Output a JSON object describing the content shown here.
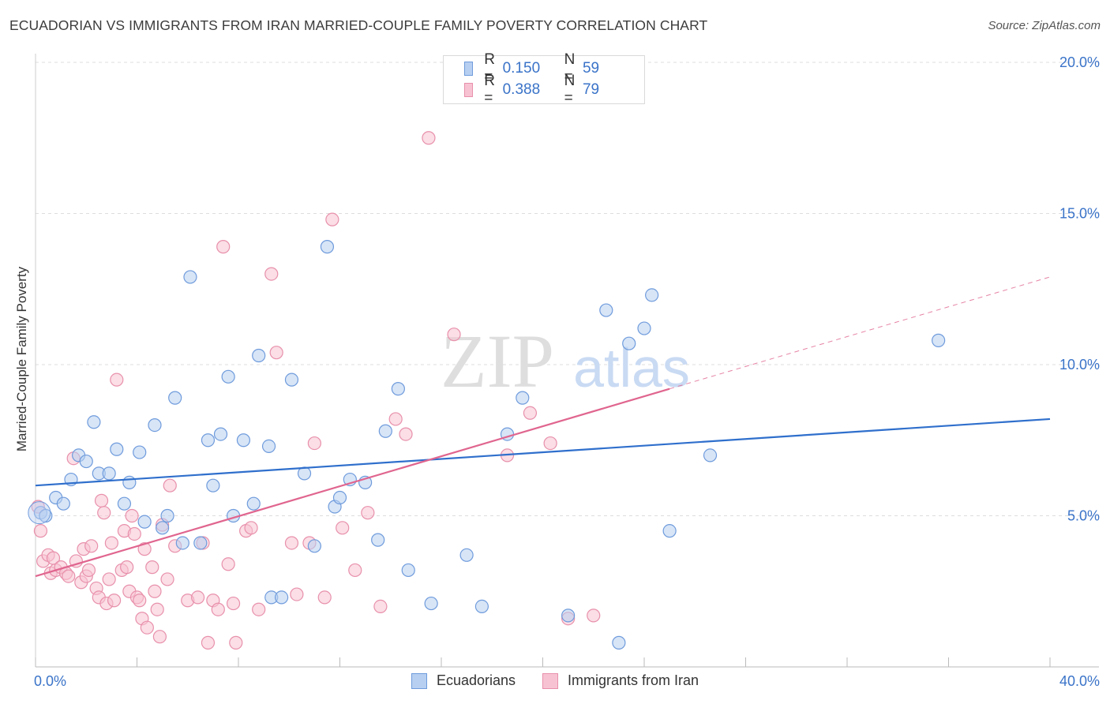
{
  "title": "ECUADORIAN VS IMMIGRANTS FROM IRAN MARRIED-COUPLE FAMILY POVERTY CORRELATION CHART",
  "source": "Source: ZipAtlas.com",
  "watermark": {
    "zip": "ZIP",
    "atlas": "atlas"
  },
  "legend_top": [
    {
      "r_label": "R =",
      "r_value": "0.150",
      "n_label": "N =",
      "n_value": "59"
    },
    {
      "r_label": "R =",
      "r_value": "0.388",
      "n_label": "N =",
      "n_value": "79"
    }
  ],
  "legend_bottom": [
    "Ecuadorians",
    "Immigrants from Iran"
  ],
  "colors": {
    "blue_fill": "#b7cff1",
    "blue_stroke": "#6f9bdc",
    "blue_line": "#2f6fcc",
    "pink_fill": "#f7c3d2",
    "pink_stroke": "#e890ab",
    "pink_line": "#e0658f",
    "grid": "#dddddd",
    "tick_label": "#3a73c8"
  },
  "chart_data": {
    "type": "scatter",
    "title": "ECUADORIAN VS IMMIGRANTS FROM IRAN MARRIED-COUPLE FAMILY POVERTY CORRELATION CHART",
    "xlabel": "",
    "ylabel": "Married-Couple Family Poverty",
    "xlim": [
      0,
      40
    ],
    "ylim": [
      0,
      20
    ],
    "x_tick_labels": [
      "0.0%",
      "40.0%"
    ],
    "y_ticks": [
      5,
      10,
      15,
      20
    ],
    "y_tick_labels": [
      "5.0%",
      "10.0%",
      "15.0%",
      "20.0%"
    ],
    "grid": true,
    "legend_placement": "top-center",
    "series": [
      {
        "name": "Ecuadorians",
        "r": 0.15,
        "n": 59,
        "trend": {
          "x": [
            0,
            40
          ],
          "y": [
            6.0,
            8.2
          ]
        },
        "points": [
          [
            0.2,
            5.1
          ],
          [
            0.4,
            5.0
          ],
          [
            0.8,
            5.6
          ],
          [
            1.1,
            5.4
          ],
          [
            1.4,
            6.2
          ],
          [
            1.7,
            7.0
          ],
          [
            2.0,
            6.8
          ],
          [
            2.3,
            8.1
          ],
          [
            2.5,
            6.4
          ],
          [
            2.9,
            6.4
          ],
          [
            3.2,
            7.2
          ],
          [
            3.5,
            5.4
          ],
          [
            3.7,
            6.1
          ],
          [
            4.1,
            7.1
          ],
          [
            4.3,
            4.8
          ],
          [
            4.7,
            8.0
          ],
          [
            5.0,
            4.6
          ],
          [
            5.2,
            5.0
          ],
          [
            5.5,
            8.9
          ],
          [
            5.8,
            4.1
          ],
          [
            6.1,
            12.9
          ],
          [
            6.5,
            4.1
          ],
          [
            6.8,
            7.5
          ],
          [
            7.0,
            6.0
          ],
          [
            7.3,
            7.7
          ],
          [
            7.6,
            9.6
          ],
          [
            7.8,
            5.0
          ],
          [
            8.2,
            7.5
          ],
          [
            8.6,
            5.4
          ],
          [
            8.8,
            10.3
          ],
          [
            9.2,
            7.3
          ],
          [
            9.3,
            2.3
          ],
          [
            9.7,
            2.3
          ],
          [
            10.1,
            9.5
          ],
          [
            10.6,
            6.4
          ],
          [
            11.0,
            4.0
          ],
          [
            11.5,
            13.9
          ],
          [
            11.8,
            5.3
          ],
          [
            12.0,
            5.6
          ],
          [
            12.4,
            6.2
          ],
          [
            13.0,
            6.1
          ],
          [
            13.5,
            4.2
          ],
          [
            13.8,
            7.8
          ],
          [
            14.3,
            9.2
          ],
          [
            14.7,
            3.2
          ],
          [
            15.6,
            2.1
          ],
          [
            17.0,
            3.7
          ],
          [
            17.6,
            2.0
          ],
          [
            18.6,
            7.7
          ],
          [
            19.2,
            8.9
          ],
          [
            21.0,
            1.7
          ],
          [
            22.5,
            11.8
          ],
          [
            23.0,
            0.8
          ],
          [
            23.4,
            10.7
          ],
          [
            24.0,
            11.2
          ],
          [
            24.3,
            12.3
          ],
          [
            25.0,
            4.5
          ],
          [
            26.6,
            7.0
          ],
          [
            35.6,
            10.8
          ]
        ]
      },
      {
        "name": "Immigrants from Iran",
        "r": 0.388,
        "n": 79,
        "trend": {
          "x": [
            0,
            25
          ],
          "y": [
            3.0,
            9.2
          ]
        },
        "trend_dashed": {
          "x": [
            25,
            40
          ],
          "y": [
            9.2,
            12.9
          ]
        },
        "points": [
          [
            0.1,
            5.3
          ],
          [
            0.2,
            4.5
          ],
          [
            0.3,
            3.5
          ],
          [
            0.5,
            3.7
          ],
          [
            0.6,
            3.1
          ],
          [
            0.7,
            3.6
          ],
          [
            0.8,
            3.2
          ],
          [
            1.0,
            3.3
          ],
          [
            1.2,
            3.1
          ],
          [
            1.3,
            3.0
          ],
          [
            1.5,
            6.9
          ],
          [
            1.6,
            3.5
          ],
          [
            1.8,
            2.8
          ],
          [
            1.9,
            3.9
          ],
          [
            2.0,
            3.0
          ],
          [
            2.1,
            3.2
          ],
          [
            2.2,
            4.0
          ],
          [
            2.4,
            2.6
          ],
          [
            2.5,
            2.3
          ],
          [
            2.6,
            5.5
          ],
          [
            2.7,
            5.1
          ],
          [
            2.8,
            2.1
          ],
          [
            2.9,
            2.9
          ],
          [
            3.0,
            4.1
          ],
          [
            3.1,
            2.2
          ],
          [
            3.2,
            9.5
          ],
          [
            3.4,
            3.2
          ],
          [
            3.5,
            4.5
          ],
          [
            3.6,
            3.3
          ],
          [
            3.7,
            2.5
          ],
          [
            3.8,
            5.0
          ],
          [
            3.9,
            4.4
          ],
          [
            4.0,
            2.3
          ],
          [
            4.1,
            2.2
          ],
          [
            4.2,
            1.6
          ],
          [
            4.3,
            3.9
          ],
          [
            4.4,
            1.3
          ],
          [
            4.6,
            3.3
          ],
          [
            4.7,
            2.5
          ],
          [
            4.8,
            1.9
          ],
          [
            4.9,
            1.0
          ],
          [
            5.0,
            4.7
          ],
          [
            5.2,
            2.9
          ],
          [
            5.3,
            6.0
          ],
          [
            5.5,
            4.0
          ],
          [
            6.0,
            2.2
          ],
          [
            6.4,
            2.3
          ],
          [
            6.6,
            4.1
          ],
          [
            6.8,
            0.8
          ],
          [
            7.0,
            2.2
          ],
          [
            7.2,
            1.9
          ],
          [
            7.4,
            13.9
          ],
          [
            7.6,
            3.4
          ],
          [
            7.8,
            2.1
          ],
          [
            7.9,
            0.8
          ],
          [
            8.3,
            4.5
          ],
          [
            8.5,
            4.6
          ],
          [
            8.8,
            1.9
          ],
          [
            9.3,
            13.0
          ],
          [
            9.5,
            10.4
          ],
          [
            10.1,
            4.1
          ],
          [
            10.3,
            2.4
          ],
          [
            10.8,
            4.1
          ],
          [
            11.0,
            7.4
          ],
          [
            11.4,
            2.3
          ],
          [
            11.7,
            14.8
          ],
          [
            12.1,
            4.6
          ],
          [
            12.6,
            3.2
          ],
          [
            13.1,
            5.1
          ],
          [
            13.6,
            2.0
          ],
          [
            14.2,
            8.2
          ],
          [
            14.6,
            7.7
          ],
          [
            15.5,
            17.5
          ],
          [
            16.5,
            11.0
          ],
          [
            18.6,
            7.0
          ],
          [
            19.5,
            8.4
          ],
          [
            20.3,
            7.4
          ],
          [
            21.0,
            1.6
          ],
          [
            22.0,
            1.7
          ]
        ]
      }
    ]
  }
}
